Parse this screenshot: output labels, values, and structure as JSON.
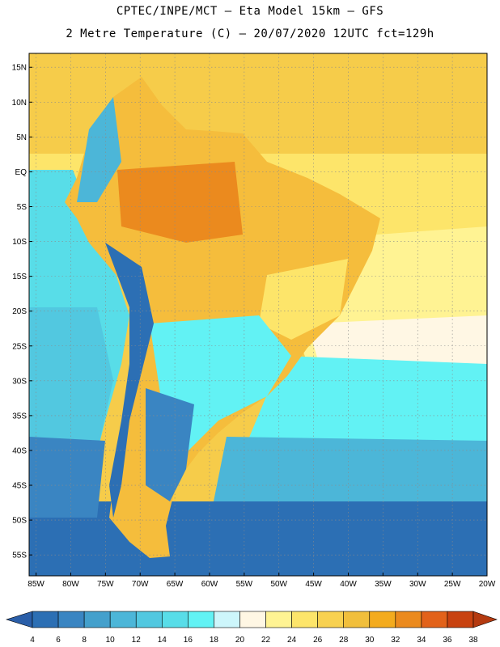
{
  "header": {
    "line1": "CPTEC/INPE/MCT —  Eta Model 15km — GFS",
    "line2": "2 Metre Temperature (C) — 20/07/2020 12UTC fct=129h"
  },
  "map": {
    "lon_min": -86,
    "lon_max": -20,
    "lat_min": -58,
    "lat_max": 17,
    "lat_ticks": [
      {
        "value": 15,
        "label": "15N"
      },
      {
        "value": 10,
        "label": "10N"
      },
      {
        "value": 5,
        "label": "5N"
      },
      {
        "value": 0,
        "label": "EQ"
      },
      {
        "value": -5,
        "label": "5S"
      },
      {
        "value": -10,
        "label": "10S"
      },
      {
        "value": -15,
        "label": "15S"
      },
      {
        "value": -20,
        "label": "20S"
      },
      {
        "value": -25,
        "label": "25S"
      },
      {
        "value": -30,
        "label": "30S"
      },
      {
        "value": -35,
        "label": "35S"
      },
      {
        "value": -40,
        "label": "40S"
      },
      {
        "value": -45,
        "label": "45S"
      },
      {
        "value": -50,
        "label": "50S"
      },
      {
        "value": -55,
        "label": "55S"
      }
    ],
    "lon_ticks": [
      {
        "value": -85,
        "label": "85W"
      },
      {
        "value": -80,
        "label": "80W"
      },
      {
        "value": -75,
        "label": "75W"
      },
      {
        "value": -70,
        "label": "70W"
      },
      {
        "value": -65,
        "label": "65W"
      },
      {
        "value": -60,
        "label": "60W"
      },
      {
        "value": -55,
        "label": "55W"
      },
      {
        "value": -50,
        "label": "50W"
      },
      {
        "value": -45,
        "label": "45W"
      },
      {
        "value": -40,
        "label": "40W"
      },
      {
        "value": -35,
        "label": "35W"
      },
      {
        "value": -30,
        "label": "30W"
      },
      {
        "value": -25,
        "label": "25W"
      },
      {
        "value": -20,
        "label": "20W"
      }
    ]
  },
  "colorbar": {
    "labels": [
      "4",
      "6",
      "8",
      "10",
      "12",
      "14",
      "16",
      "18",
      "20",
      "22",
      "24",
      "26",
      "28",
      "30",
      "32",
      "34",
      "36",
      "38"
    ],
    "colors": [
      "#2c6fb4",
      "#3a85c2",
      "#44a0cc",
      "#4cb6d8",
      "#52c8e0",
      "#58dde8",
      "#62f2f4",
      "#cdf6fb",
      "#fff7e4",
      "#fff393",
      "#fde56a",
      "#f8d150",
      "#f1bf3c",
      "#f3ab1e",
      "#eb8a1e",
      "#e2621a",
      "#c84210"
    ]
  }
}
